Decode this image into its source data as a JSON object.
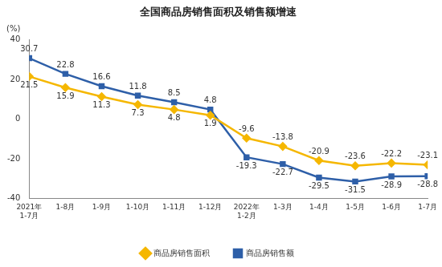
{
  "chart_data": {
    "type": "line",
    "title": "全国商品房销售面积及销售额增速",
    "y_label": "(%)",
    "categories": [
      "2021年 1-7月",
      "1-8月",
      "1-9月",
      "1-10月",
      "1-11月",
      "1-12月",
      "2022年 1-2月",
      "1-3月",
      "1-4月",
      "1-5月",
      "1-6月",
      "1-7月"
    ],
    "series": [
      {
        "name": "商品房销售面积",
        "color": "#f5b700",
        "marker": "diamond",
        "line_style": "solid",
        "values": [
          21.5,
          15.9,
          11.3,
          7.3,
          4.8,
          1.9,
          -9.6,
          -13.8,
          -20.9,
          -23.6,
          -22.2,
          -23.1
        ]
      },
      {
        "name": "商品房销售额",
        "color": "#2e5fa8",
        "marker": "square",
        "line_style": "solid",
        "values": [
          30.7,
          22.8,
          16.6,
          11.8,
          8.5,
          4.8,
          -19.3,
          -22.7,
          -29.5,
          -31.5,
          -28.9,
          -28.8
        ]
      }
    ],
    "ylim": [
      -40,
      40
    ],
    "yticks": [
      -40,
      -20,
      0,
      20,
      40
    ],
    "grid": false,
    "legend": "bottom",
    "data_labels": true
  }
}
